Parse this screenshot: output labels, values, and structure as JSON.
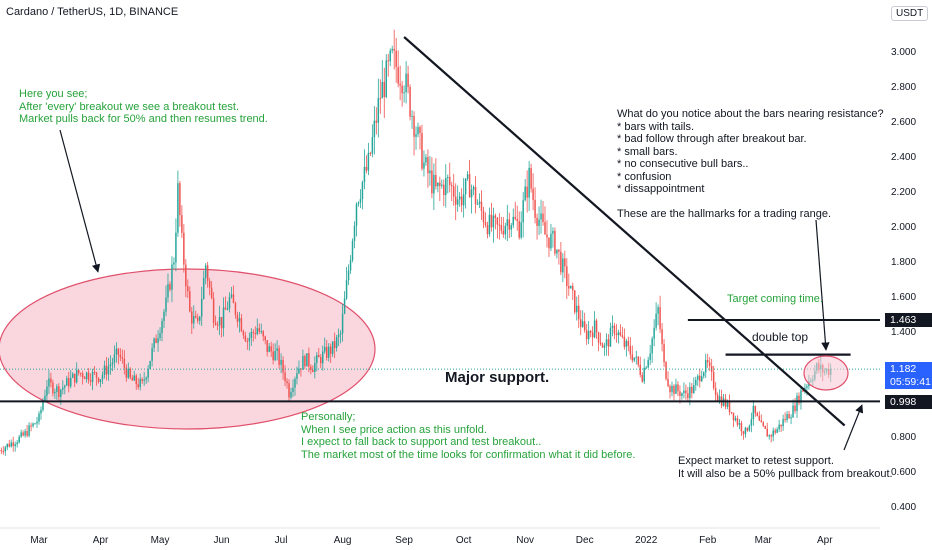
{
  "header": {
    "symbol_title": "Cardano / TetherUS, 1D, BINANCE",
    "currency_button": "USDT"
  },
  "price_tags": {
    "resistance": "1.463",
    "current_price": "1.182",
    "countdown": "05:59:41",
    "support": "0.998"
  },
  "annotations": {
    "breakout_note": "Here you see;\nAfter 'every' breakout we see a breakout test.\nMarket pulls back for 50% and then resumes trend.",
    "resistance_note": "What do you notice about the bars nearing resistance?\n* bars with tails.\n* bad follow through after breakout bar.\n* small bars.\n* no consecutive bull bars..\n* confusion\n* dissappointment\n\nThese are the hallmarks for a trading range.",
    "target_note": "Target coming time.",
    "double_top_label": "double top",
    "major_support_label": "Major support.",
    "personal_note": "Personally;\nWhen I see price action as this unfold.\nI expect to fall back to support and test breakout..\nThe market most of the time looks for confirmation what it did before.",
    "retest_note": "Expect market to retest support.\nIt will also be a 50% pullback from breakout."
  },
  "colors": {
    "up_candle": "#26a69a",
    "down_candle": "#ef5350",
    "note_text": "#27a33b",
    "highlight_fill": "#f8c8d4",
    "highlight_stroke": "#e0506b",
    "price_line": "#26a69a"
  },
  "chart_data": {
    "type": "candlestick",
    "symbol": "Cardano / TetherUS",
    "interval": "1D",
    "exchange": "BINANCE",
    "y_axis": {
      "ticks": [
        0.4,
        0.6,
        0.8,
        1.0,
        1.2,
        1.4,
        1.6,
        1.8,
        2.0,
        2.2,
        2.4,
        2.6,
        2.8,
        3.0
      ],
      "tick_labels": [
        "0.400",
        "0.600",
        "0.800",
        "1.000",
        "1.200",
        "1.400",
        "1.600",
        "1.800",
        "2.000",
        "2.200",
        "2.400",
        "2.600",
        "2.800",
        "3.000"
      ],
      "range": [
        0.25,
        3.22
      ]
    },
    "x_axis": {
      "tick_labels": [
        "Mar",
        "Apr",
        "May",
        "Jun",
        "Jul",
        "Aug",
        "Sep",
        "Oct",
        "Nov",
        "Dec",
        "2022",
        "Feb",
        "Mar",
        "Apr"
      ],
      "tick_positions": [
        0,
        31,
        61,
        92,
        122,
        153,
        184,
        214,
        245,
        275,
        306,
        337,
        365,
        396
      ]
    },
    "close_path": [
      [
        -20,
        0.72
      ],
      [
        -8,
        0.8
      ],
      [
        0,
        0.9
      ],
      [
        4,
        1.1
      ],
      [
        10,
        1.06
      ],
      [
        20,
        1.16
      ],
      [
        31,
        1.14
      ],
      [
        40,
        1.27
      ],
      [
        46,
        1.12
      ],
      [
        52,
        1.09
      ],
      [
        58,
        1.32
      ],
      [
        64,
        1.55
      ],
      [
        68,
        1.82
      ],
      [
        70,
        2.2
      ],
      [
        72,
        1.9
      ],
      [
        76,
        1.5
      ],
      [
        80,
        1.42
      ],
      [
        84,
        1.78
      ],
      [
        88,
        1.5
      ],
      [
        92,
        1.45
      ],
      [
        96,
        1.58
      ],
      [
        100,
        1.5
      ],
      [
        105,
        1.35
      ],
      [
        110,
        1.42
      ],
      [
        115,
        1.3
      ],
      [
        120,
        1.26
      ],
      [
        124,
        1.14
      ],
      [
        126,
        1.05
      ],
      [
        130,
        1.18
      ],
      [
        134,
        1.24
      ],
      [
        138,
        1.2
      ],
      [
        143,
        1.26
      ],
      [
        148,
        1.3
      ],
      [
        152,
        1.38
      ],
      [
        156,
        1.75
      ],
      [
        160,
        2.15
      ],
      [
        166,
        2.35
      ],
      [
        172,
        2.75
      ],
      [
        178,
        2.95
      ],
      [
        184,
        2.84
      ],
      [
        189,
        2.6
      ],
      [
        194,
        2.35
      ],
      [
        200,
        2.2
      ],
      [
        206,
        2.25
      ],
      [
        212,
        2.15
      ],
      [
        217,
        2.24
      ],
      [
        222,
        2.1
      ],
      [
        227,
        2.0
      ],
      [
        232,
        1.98
      ],
      [
        237,
        2.05
      ],
      [
        242,
        2.0
      ],
      [
        247,
        2.28
      ],
      [
        250,
        2.1
      ],
      [
        255,
        1.95
      ],
      [
        260,
        1.9
      ],
      [
        265,
        1.72
      ],
      [
        270,
        1.55
      ],
      [
        275,
        1.38
      ],
      [
        280,
        1.42
      ],
      [
        285,
        1.3
      ],
      [
        290,
        1.42
      ],
      [
        295,
        1.32
      ],
      [
        300,
        1.25
      ],
      [
        304,
        1.15
      ],
      [
        308,
        1.3
      ],
      [
        312,
        1.52
      ],
      [
        315,
        1.2
      ],
      [
        318,
        1.08
      ],
      [
        325,
        1.04
      ],
      [
        330,
        1.07
      ],
      [
        334,
        1.18
      ],
      [
        337,
        1.2
      ],
      [
        342,
        1.03
      ],
      [
        348,
        0.96
      ],
      [
        352,
        0.88
      ],
      [
        356,
        0.82
      ],
      [
        360,
        0.94
      ],
      [
        364,
        0.85
      ],
      [
        368,
        0.8
      ],
      [
        372,
        0.84
      ],
      [
        376,
        0.9
      ],
      [
        380,
        0.95
      ],
      [
        384,
        1.05
      ],
      [
        388,
        1.12
      ],
      [
        392,
        1.19
      ],
      [
        396,
        1.17
      ],
      [
        399,
        1.182
      ]
    ],
    "horizontal_levels": [
      {
        "label": "resistance",
        "value": 1.463
      },
      {
        "label": "support",
        "value": 0.998
      },
      {
        "label": "double top",
        "value": 1.265
      },
      {
        "label": "current price",
        "value": 1.182
      }
    ],
    "trendline": {
      "from": {
        "day": 184,
        "price": 3.08
      },
      "to": {
        "day": 406,
        "price": 0.86
      }
    }
  }
}
